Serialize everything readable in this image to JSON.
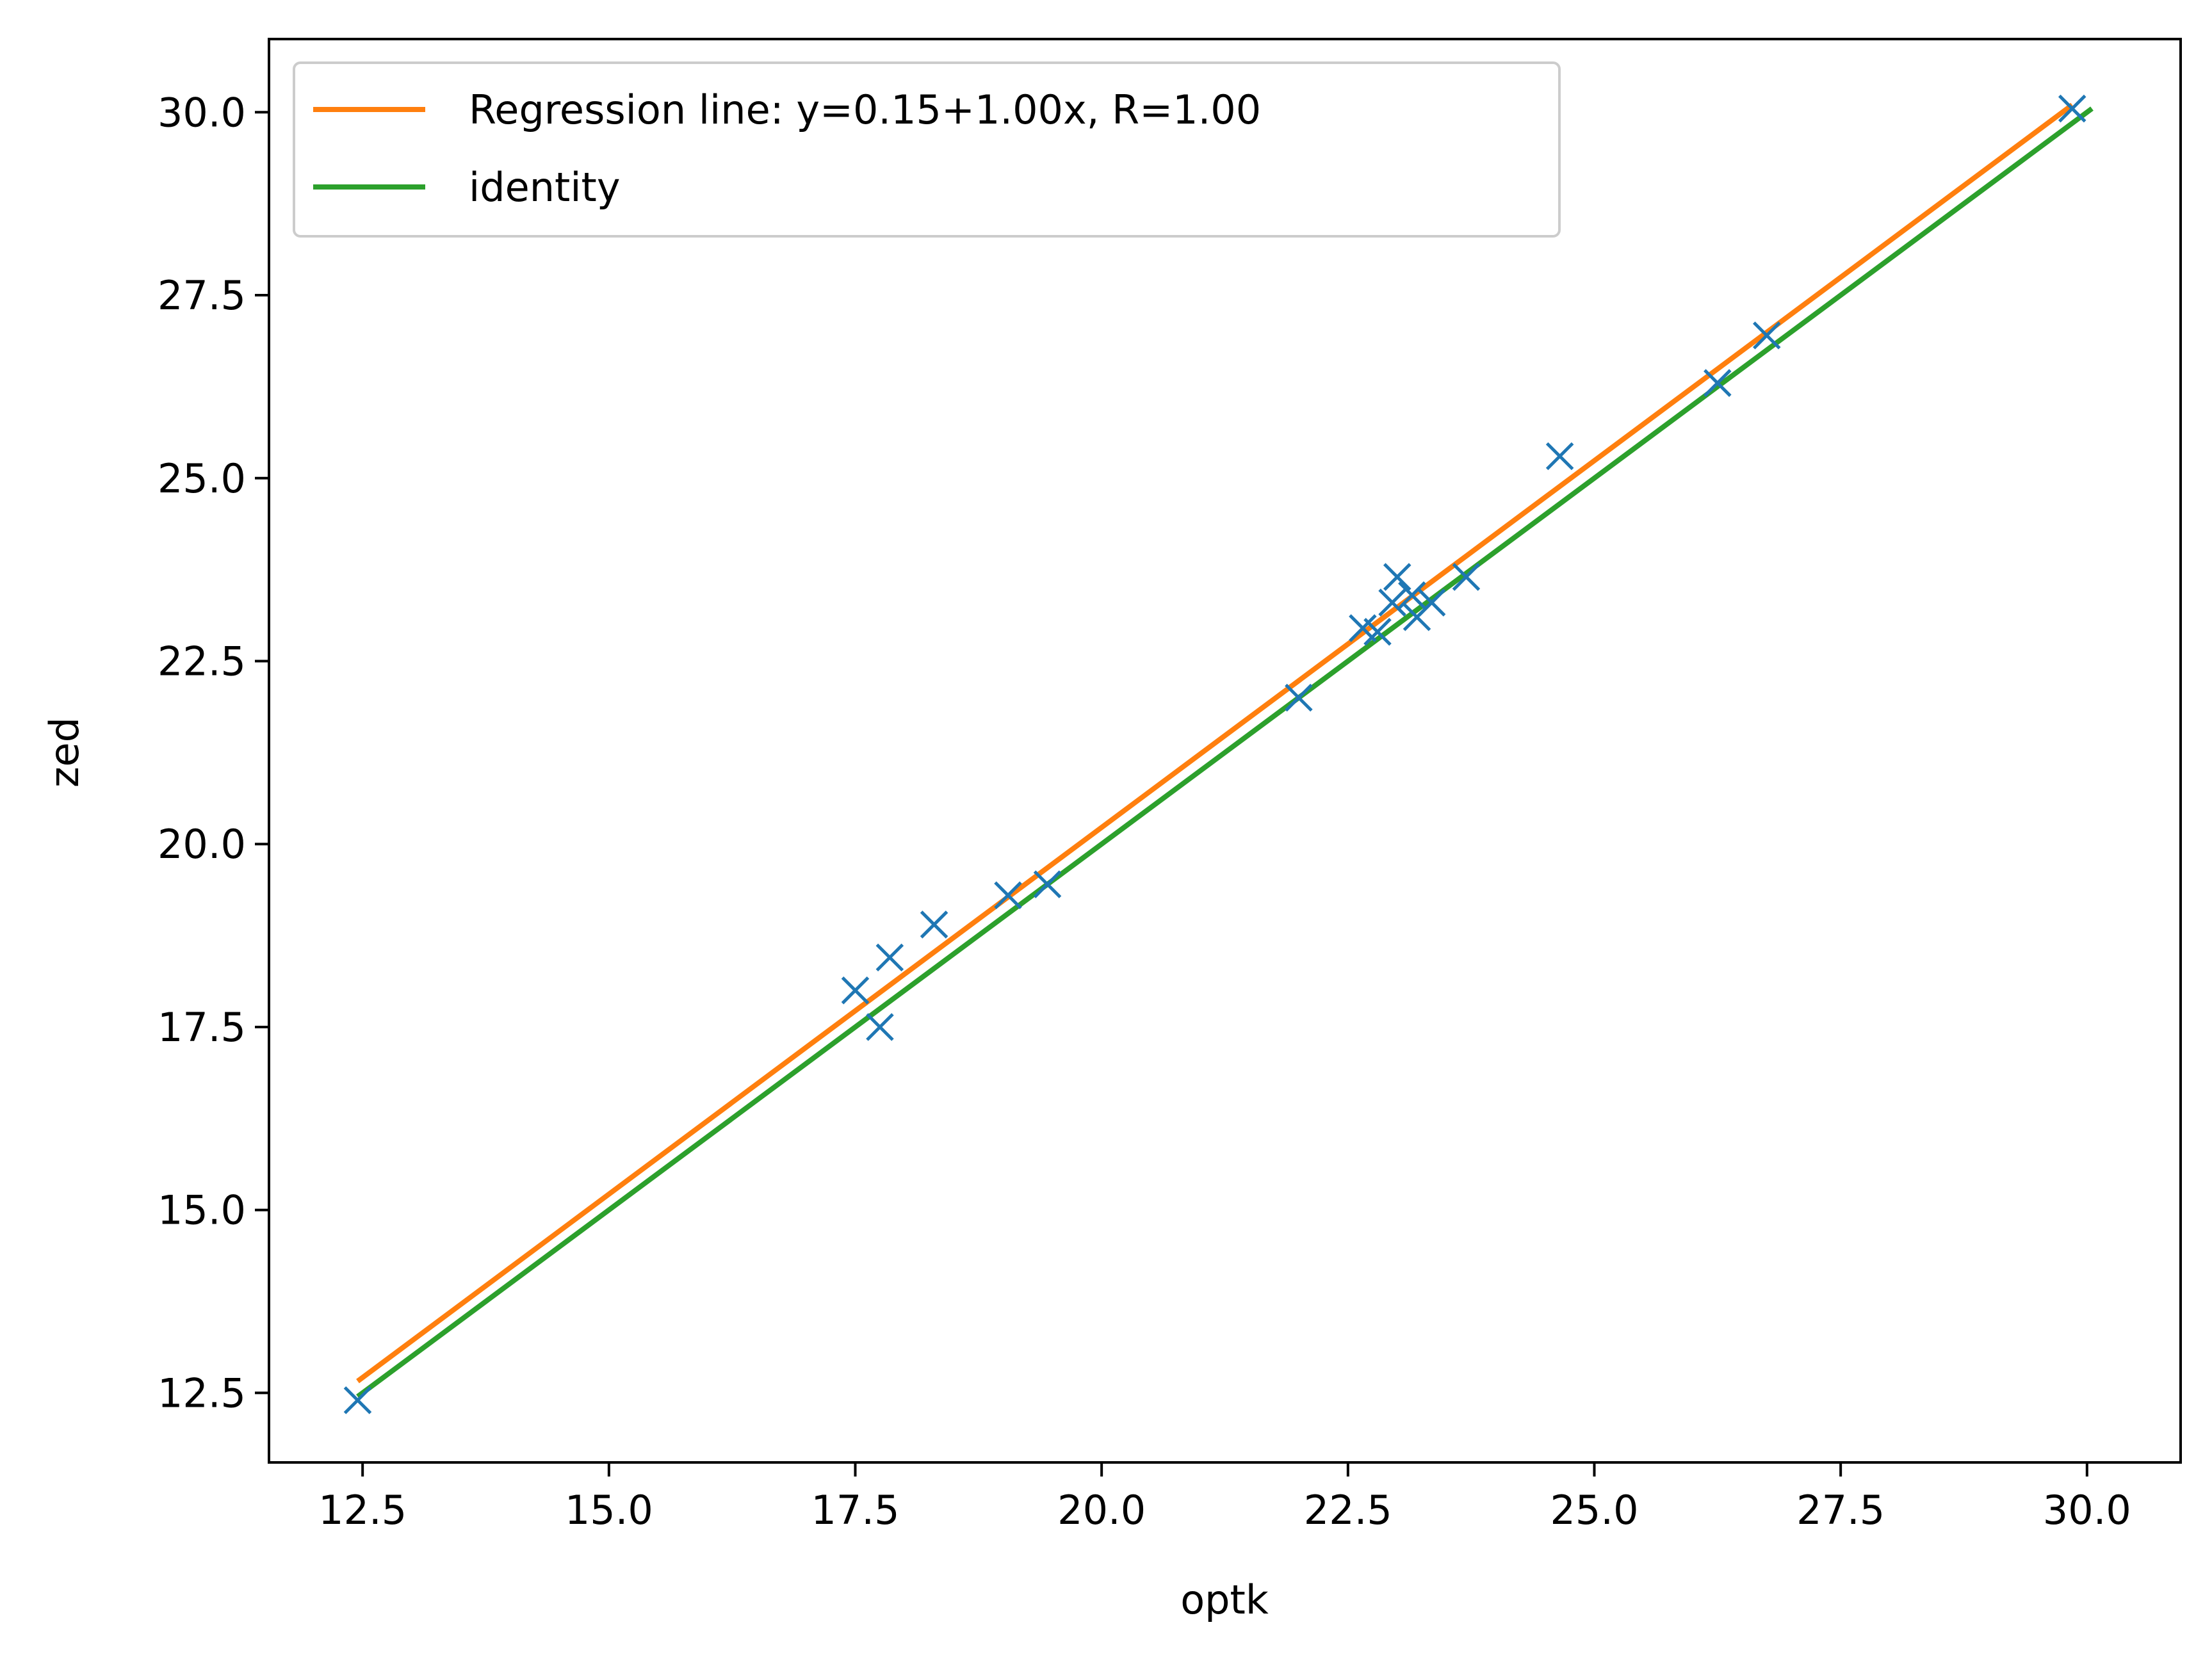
{
  "chart_data": {
    "type": "scatter",
    "title": "",
    "xlabel": "optk",
    "ylabel": "zed",
    "xlim": [
      11.55,
      30.95
    ],
    "ylim": [
      11.55,
      31.0
    ],
    "xticks": [
      "12.5",
      "15.0",
      "17.5",
      "20.0",
      "22.5",
      "25.0",
      "27.5",
      "30.0"
    ],
    "yticks": [
      "12.5",
      "15.0",
      "17.5",
      "20.0",
      "22.5",
      "25.0",
      "27.5",
      "30.0"
    ],
    "grid": false,
    "legend_position": "upper-left",
    "series": [
      {
        "name": "",
        "kind": "scatter",
        "marker": "x",
        "color": "#1f77b4",
        "points": [
          {
            "x": 12.45,
            "y": 12.4
          },
          {
            "x": 17.5,
            "y": 18.0
          },
          {
            "x": 17.75,
            "y": 17.5
          },
          {
            "x": 17.85,
            "y": 18.45
          },
          {
            "x": 18.3,
            "y": 18.9
          },
          {
            "x": 19.05,
            "y": 19.3
          },
          {
            "x": 19.45,
            "y": 19.45
          },
          {
            "x": 22.0,
            "y": 22.0
          },
          {
            "x": 22.65,
            "y": 22.95
          },
          {
            "x": 22.8,
            "y": 22.9
          },
          {
            "x": 22.95,
            "y": 23.3
          },
          {
            "x": 23.0,
            "y": 23.65
          },
          {
            "x": 23.15,
            "y": 23.4
          },
          {
            "x": 23.2,
            "y": 23.1
          },
          {
            "x": 23.35,
            "y": 23.3
          },
          {
            "x": 23.7,
            "y": 23.65
          },
          {
            "x": 24.65,
            "y": 25.3
          },
          {
            "x": 26.25,
            "y": 26.3
          },
          {
            "x": 26.75,
            "y": 26.95
          },
          {
            "x": 29.85,
            "y": 30.05
          }
        ]
      },
      {
        "name": "Regression line: y=0.15+1.00x, R=1.00",
        "kind": "line",
        "color": "#ff7f0e",
        "x": [
          12.45,
          29.85
        ],
        "y": [
          12.66,
          30.1
        ]
      },
      {
        "name": "identity",
        "kind": "line",
        "color": "#2ca02c",
        "x": [
          12.45,
          30.05
        ],
        "y": [
          12.45,
          30.05
        ]
      }
    ]
  }
}
